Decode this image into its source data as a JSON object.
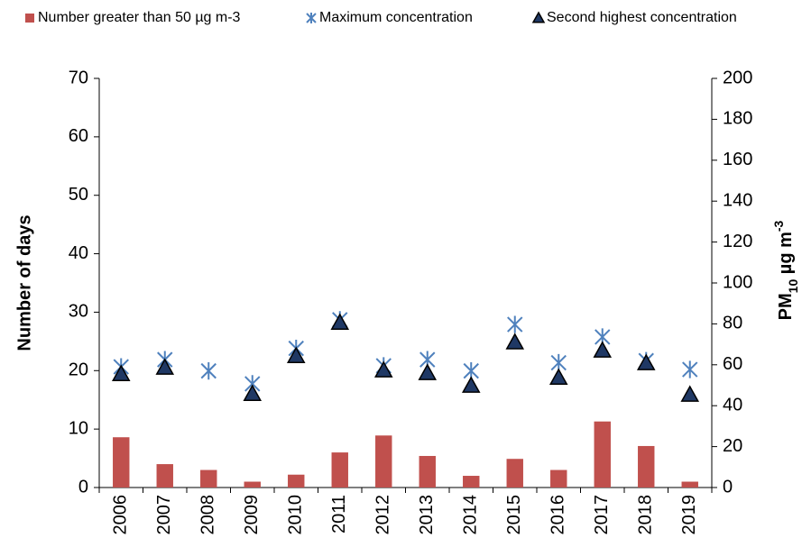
{
  "chart_data": {
    "type": "bar_scatter",
    "categories": [
      "2006",
      "2007",
      "2008",
      "2009",
      "2010",
      "2011",
      "2012",
      "2013",
      "2014",
      "2015",
      "2016",
      "2017",
      "2018",
      "2019"
    ],
    "series": [
      {
        "name": "Number greater than 50 µg m-3",
        "color": "#c0504d",
        "marker": "bar",
        "axis": "y",
        "values": [
          8.6,
          4,
          3,
          1,
          2.2,
          6,
          8.9,
          5.4,
          2,
          4.9,
          3,
          11.3,
          7.1,
          1
        ]
      },
      {
        "name": "Maximum concentration",
        "color": "#4f81bd",
        "marker": "star",
        "axis": "y2",
        "values": [
          59,
          62.5,
          57,
          50.7,
          68,
          82,
          59.5,
          62.5,
          57,
          79.7,
          61,
          73.6,
          62,
          57.7
        ]
      },
      {
        "name": "Second highest concentration",
        "color": "#1f3864",
        "marker": "triangle",
        "axis": "y2",
        "values": [
          55.5,
          58.6,
          null,
          45.8,
          64.3,
          80.6,
          57.3,
          56,
          49.8,
          71,
          53.7,
          67,
          60.8,
          45.4
        ]
      }
    ],
    "ylabel": "Number of days",
    "y2label": [
      "PM",
      "10",
      " µg m",
      "-3"
    ],
    "ylim": [
      0,
      70
    ],
    "yticks": [
      0,
      10,
      20,
      30,
      40,
      50,
      60,
      70
    ],
    "y2lim": [
      0,
      200
    ],
    "y2ticks": [
      0,
      20,
      40,
      60,
      80,
      100,
      120,
      140,
      160,
      180,
      200
    ],
    "legend": "top"
  }
}
